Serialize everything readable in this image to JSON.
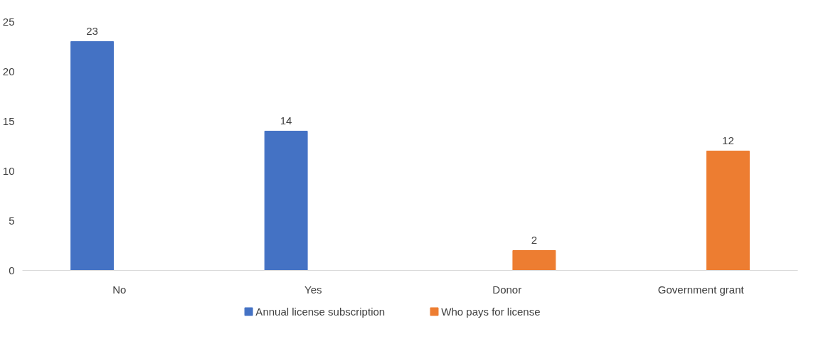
{
  "chart_data": {
    "type": "bar",
    "categories": [
      "No",
      "Yes",
      "Donor",
      "Government grant"
    ],
    "series": [
      {
        "name": "Annual license subscription",
        "color": "#4472c4",
        "values": [
          23,
          14,
          null,
          null
        ]
      },
      {
        "name": "Who pays for license",
        "color": "#ed7d31",
        "values": [
          null,
          null,
          2,
          12
        ]
      }
    ],
    "ylim": [
      0,
      25
    ],
    "yticks": [
      0,
      5,
      10,
      15,
      20,
      25
    ],
    "grid": false,
    "legend": "bottom",
    "data_labels": true
  }
}
